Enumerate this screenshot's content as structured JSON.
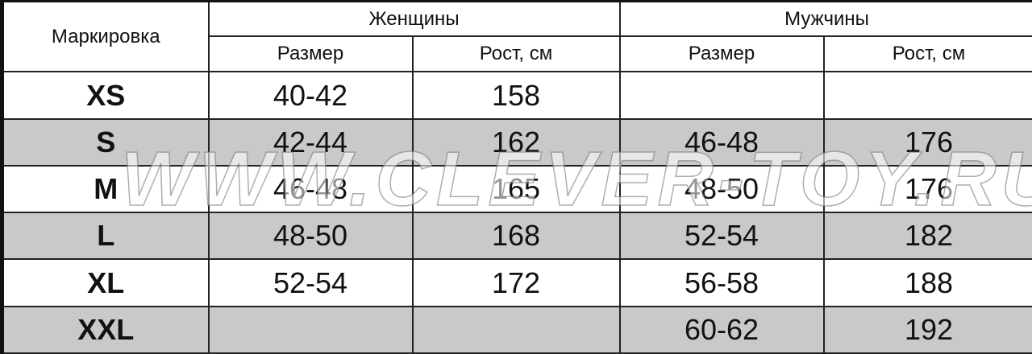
{
  "header": {
    "marking": "Маркировка",
    "women": "Женщины",
    "men": "Мужчины",
    "size": "Размер",
    "height": "Рост, см"
  },
  "rows": [
    {
      "mark": "XS",
      "women_size": "40-42",
      "women_height": "158",
      "men_size": "",
      "men_height": "",
      "shaded": false
    },
    {
      "mark": "S",
      "women_size": "42-44",
      "women_height": "162",
      "men_size": "46-48",
      "men_height": "176",
      "shaded": true
    },
    {
      "mark": "M",
      "women_size": "46-48",
      "women_height": "165",
      "men_size": "48-50",
      "men_height": "176",
      "shaded": false
    },
    {
      "mark": "L",
      "women_size": "48-50",
      "women_height": "168",
      "men_size": "52-54",
      "men_height": "182",
      "shaded": true
    },
    {
      "mark": "XL",
      "women_size": "52-54",
      "women_height": "172",
      "men_size": "56-58",
      "men_height": "188",
      "shaded": false
    },
    {
      "mark": "XXL",
      "women_size": "",
      "women_height": "",
      "men_size": "60-62",
      "men_height": "192",
      "shaded": true
    }
  ],
  "colors": {
    "shaded_row": "#c9c9c9",
    "border": "#222222"
  },
  "watermark": "WWW.CLEVER-TOY.RU"
}
